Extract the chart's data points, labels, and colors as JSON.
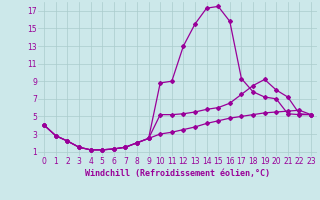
{
  "xlabel": "Windchill (Refroidissement éolien,°C)",
  "bg_color": "#cce8ea",
  "line_color": "#990099",
  "grid_color": "#aacccc",
  "xlim": [
    -0.5,
    23.5
  ],
  "ylim": [
    0.5,
    18
  ],
  "xticks": [
    0,
    1,
    2,
    3,
    4,
    5,
    6,
    7,
    8,
    9,
    10,
    11,
    12,
    13,
    14,
    15,
    16,
    17,
    18,
    19,
    20,
    21,
    22,
    23
  ],
  "yticks": [
    1,
    3,
    5,
    7,
    9,
    11,
    13,
    15,
    17
  ],
  "line1_x": [
    0,
    1,
    2,
    3,
    4,
    5,
    6,
    7,
    8,
    9,
    10,
    11,
    12,
    13,
    14,
    15,
    16,
    17,
    18,
    19,
    20,
    21,
    22,
    23
  ],
  "line1_y": [
    4.0,
    2.8,
    2.2,
    1.5,
    1.2,
    1.2,
    1.3,
    1.5,
    2.0,
    2.5,
    8.8,
    9.0,
    13.0,
    15.5,
    17.3,
    17.5,
    15.8,
    9.3,
    7.8,
    7.2,
    7.0,
    5.3,
    5.2,
    5.2
  ],
  "line2_x": [
    0,
    1,
    2,
    3,
    4,
    5,
    6,
    7,
    8,
    9,
    10,
    11,
    12,
    13,
    14,
    15,
    16,
    17,
    18,
    19,
    20,
    21,
    22,
    23
  ],
  "line2_y": [
    4.0,
    2.8,
    2.2,
    1.5,
    1.2,
    1.2,
    1.3,
    1.5,
    2.0,
    2.5,
    5.2,
    5.2,
    5.3,
    5.5,
    5.8,
    6.0,
    6.5,
    7.5,
    8.5,
    9.2,
    8.0,
    7.2,
    5.3,
    5.2
  ],
  "line3_x": [
    0,
    1,
    2,
    3,
    4,
    5,
    6,
    7,
    8,
    9,
    10,
    11,
    12,
    13,
    14,
    15,
    16,
    17,
    18,
    19,
    20,
    21,
    22,
    23
  ],
  "line3_y": [
    4.0,
    2.8,
    2.2,
    1.5,
    1.2,
    1.2,
    1.3,
    1.5,
    2.0,
    2.5,
    3.0,
    3.2,
    3.5,
    3.8,
    4.2,
    4.5,
    4.8,
    5.0,
    5.2,
    5.4,
    5.5,
    5.6,
    5.7,
    5.2
  ],
  "marker": "D",
  "markersize": 2.0,
  "linewidth": 0.9,
  "xlabel_fontsize": 6.0,
  "tick_fontsize": 5.5
}
